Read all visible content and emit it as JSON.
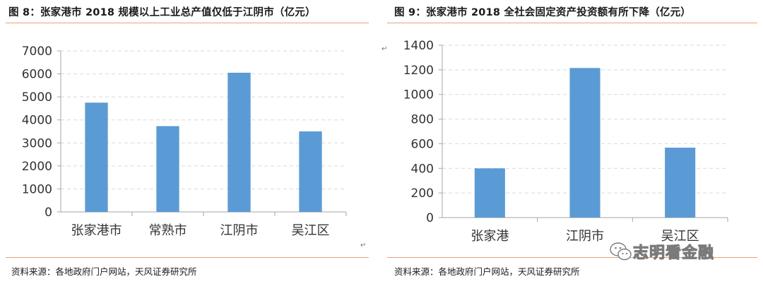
{
  "left": {
    "title": "图 8：张家港市 2018 规模以上工业总产值仅低于江阴市（亿元）",
    "source": "资料来源：各地政府门户网站，天风证券研究所"
  },
  "right": {
    "title": "图 9：张家港市 2018 全社会固定资产投资额有所下降（亿元）",
    "source": "资料来源：各地政府门户网站，天风证券研究所"
  },
  "para_mark": "↵",
  "watermark": {
    "text": "志明看金融"
  },
  "colors": {
    "bar": "#5b9bd5",
    "axis": "#a6a6a6",
    "grid": "#d9d9d9",
    "rule": "#e8a276"
  },
  "chart_data": [
    {
      "type": "bar",
      "title": "张家港市 2018 规模以上工业总产值仅低于江阴市（亿元）",
      "categories": [
        "张家港市",
        "常熟市",
        "江阴市",
        "吴江区"
      ],
      "values": [
        4750,
        3730,
        6050,
        3500
      ],
      "ylim": [
        0,
        7000
      ],
      "yticks": [
        0,
        1000,
        2000,
        3000,
        4000,
        5000,
        6000,
        7000
      ],
      "xlabel": "",
      "ylabel": "",
      "grid": true
    },
    {
      "type": "bar",
      "title": "张家港市 2018 全社会固定资产投资额有所下降（亿元）",
      "categories": [
        "张家港",
        "江阴市",
        "吴江区"
      ],
      "values": [
        400,
        1215,
        568
      ],
      "ylim": [
        0,
        1400
      ],
      "yticks": [
        0,
        200,
        400,
        600,
        800,
        1000,
        1200,
        1400
      ],
      "xlabel": "",
      "ylabel": "",
      "grid": true
    }
  ]
}
